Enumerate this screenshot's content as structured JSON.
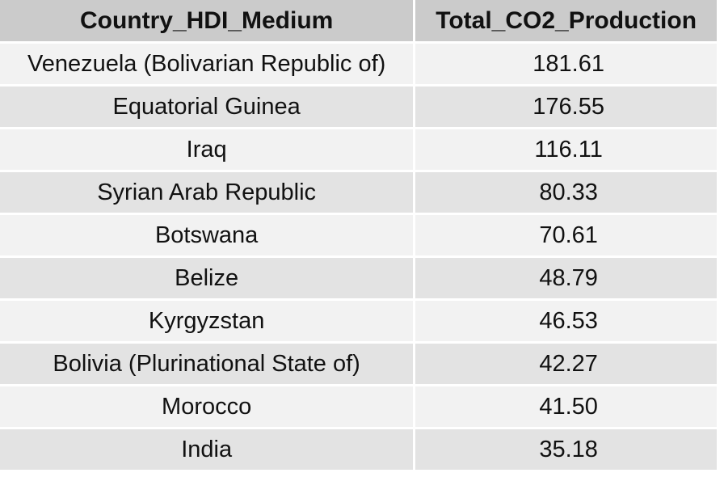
{
  "chart_data": {
    "type": "table",
    "columns": [
      "Country_HDI_Medium",
      "Total_CO2_Production"
    ],
    "rows": [
      [
        "Venezuela (Bolivarian Republic of)",
        "181.61"
      ],
      [
        "Equatorial Guinea",
        "176.55"
      ],
      [
        "Iraq",
        "116.11"
      ],
      [
        "Syrian Arab Republic",
        "80.33"
      ],
      [
        "Botswana",
        "70.61"
      ],
      [
        "Belize",
        "48.79"
      ],
      [
        "Kyrgyzstan",
        "46.53"
      ],
      [
        "Bolivia (Plurinational State of)",
        "42.27"
      ],
      [
        "Morocco",
        "41.50"
      ],
      [
        "India",
        "35.18"
      ]
    ]
  },
  "colors": {
    "header_bg": "#cbcbcb",
    "row_light": "#f2f2f2",
    "row_dark": "#e3e3e3",
    "grid": "#ffffff"
  }
}
